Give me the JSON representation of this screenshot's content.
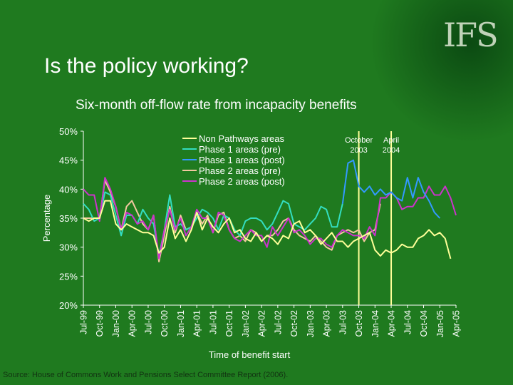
{
  "slide": {
    "title": "Is the policy working?",
    "logo": "IFS",
    "source": "Source: House of Commons Work and Pensions Select Committee Report (2006)."
  },
  "colors": {
    "background": "#1f7a1f",
    "non_pathways": "#ffff99",
    "phase1_pre": "#33ddc0",
    "phase1_post": "#3399ff",
    "phase2_pre": "#f2c8a0",
    "phase2_post": "#cc33cc",
    "marker_line": "#ffff99"
  },
  "chart_data": {
    "type": "line",
    "title": "Six-month off-flow rate from incapacity benefits",
    "xlabel": "Time of benefit start",
    "ylabel": "Percentage",
    "ylim": [
      20,
      50
    ],
    "yticks": [
      "20%",
      "25%",
      "30%",
      "35%",
      "40%",
      "45%",
      "50%"
    ],
    "x_tick_labels": [
      "Jul-99",
      "Oct-99",
      "Jan-00",
      "Apr-00",
      "Jul-00",
      "Oct-00",
      "Jan-01",
      "Apr-01",
      "Jul-01",
      "Oct-01",
      "Jan-02",
      "Apr-02",
      "Jul-02",
      "Oct-02",
      "Jan-03",
      "Apr-03",
      "Jul-03",
      "Oct-03",
      "Jan-04",
      "Apr-04",
      "Jul-04",
      "Oct-04",
      "Jan-05",
      "Apr-05"
    ],
    "legend_position": "top-center",
    "annotations": [
      {
        "label": "October",
        "sublabel": "2003",
        "at_month": 51
      },
      {
        "label": "April",
        "sublabel": "2004",
        "at_month": 57
      }
    ],
    "series": [
      {
        "name": "Non Pathways areas",
        "start_month": 0,
        "values": [
          35,
          34.5,
          35,
          35,
          38,
          38,
          34,
          33,
          34,
          33.5,
          33,
          32.5,
          32.5,
          32,
          29,
          30,
          35,
          31.5,
          33,
          31,
          33,
          36,
          33,
          35,
          33.5,
          32.5,
          34,
          35,
          32.5,
          33,
          31.5,
          31,
          32.5,
          31,
          32,
          31.5,
          30.5,
          32,
          31.5,
          34,
          34.5,
          32.5,
          33,
          32,
          30.5,
          31.5,
          32.5,
          31,
          31,
          30,
          31,
          31.5,
          32,
          32.5,
          29.5,
          28.5,
          29.5,
          29,
          29.5,
          30.5,
          30,
          30,
          31.5,
          32,
          33,
          32,
          32.5,
          31.5,
          28
        ]
      },
      {
        "name": "Phase 1 areas (pre)",
        "start_month": 0,
        "values": [
          37.5,
          36.5,
          34.5,
          35,
          39.5,
          39,
          35.5,
          32,
          35.5,
          35.5,
          34,
          36.5,
          35,
          34,
          28.5,
          33,
          39,
          33.5,
          34,
          33,
          33.5,
          35,
          36.5,
          36,
          35,
          33,
          35.5,
          35,
          33,
          32,
          34.5,
          35,
          35,
          34.5,
          33,
          34,
          36,
          38,
          37.5,
          34,
          33.5,
          33,
          34,
          35,
          37,
          36.5,
          33.5,
          33.5,
          37.5
        ]
      },
      {
        "name": "Phase 1 areas (post)",
        "start_month": 48,
        "values": [
          37.5,
          44.5,
          45,
          40.5,
          39.5,
          40.5,
          39,
          40,
          39,
          39.5,
          38.5,
          38,
          42,
          38.5,
          42,
          39.5,
          38,
          36,
          35
        ]
      },
      {
        "name": "Phase 2 areas (pre)",
        "start_month": 0,
        "values": [
          35,
          35,
          35,
          35,
          41.5,
          39.5,
          37,
          33,
          37,
          38,
          36,
          34,
          33,
          35.5,
          27.5,
          32,
          37,
          32.5,
          35.5,
          33,
          33.5,
          36,
          34,
          35.5,
          32.5,
          35.5,
          36,
          33,
          31.5,
          32,
          31,
          33,
          32.5,
          31,
          32,
          32,
          33,
          34.5,
          35,
          33,
          32,
          31.5,
          31,
          32,
          31,
          30,
          29.5,
          32,
          32.5,
          33,
          32.5,
          33,
          31,
          32.5,
          33,
          37.5
        ]
      },
      {
        "name": "Phase 2 areas (post)",
        "start_month": 0,
        "values": [
          40,
          39,
          39,
          34.5,
          42,
          40,
          37,
          33,
          36,
          35.5,
          34,
          34.5,
          33,
          35.5,
          28,
          33,
          36.5,
          33,
          35,
          32,
          33.5,
          36.5,
          35,
          35,
          32.5,
          36,
          35.5,
          33,
          31.5,
          31,
          32,
          33,
          32,
          32,
          30,
          33.5,
          32,
          33.5,
          35,
          32.5,
          33,
          32,
          30.5,
          31.5,
          31.5,
          30.5,
          30,
          32,
          33,
          32.5,
          32,
          32,
          31.5,
          33.5,
          32,
          38.5,
          38.5,
          39.5,
          38.5,
          36.5,
          37,
          37,
          38.5,
          38.5,
          40.5,
          39,
          39,
          40.5,
          38.5,
          35.5
        ]
      }
    ]
  }
}
